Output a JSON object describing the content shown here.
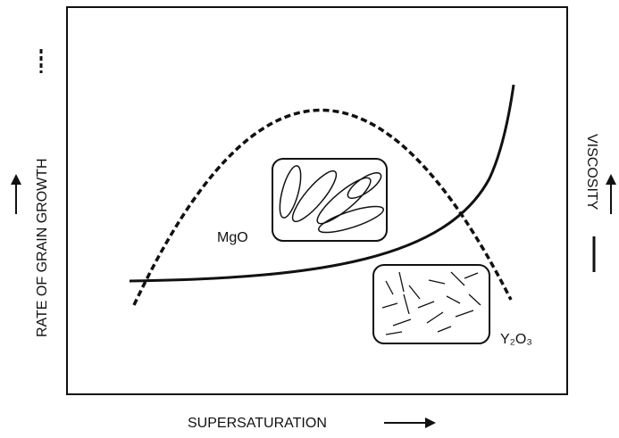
{
  "x_label": "SUPERSATURATION",
  "y_left_label": "RATE OF GRAIN GROWTH",
  "y_right_label": "VISCOSITY",
  "labels": {
    "mgo": "MgO",
    "y2o3": "Y₂O₃"
  }
}
